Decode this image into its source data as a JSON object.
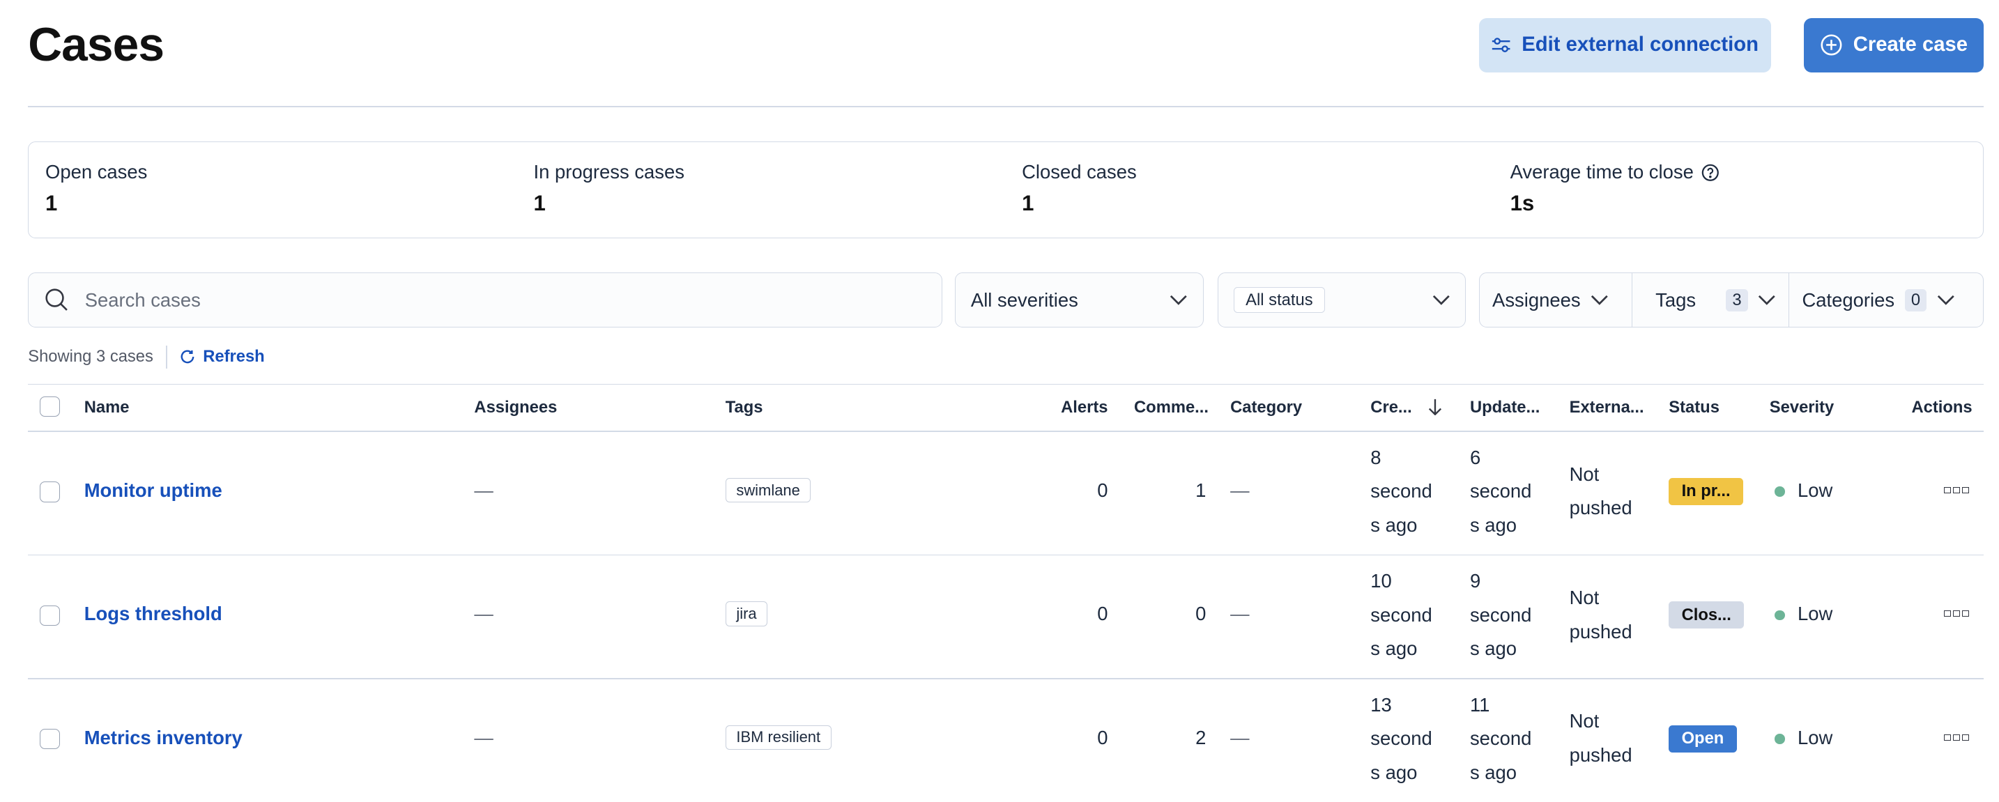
{
  "header": {
    "title": "Cases",
    "edit_connection_label": "Edit external connection",
    "create_case_label": "Create case"
  },
  "stats": [
    {
      "label": "Open cases",
      "value": "1"
    },
    {
      "label": "In progress cases",
      "value": "1"
    },
    {
      "label": "Closed cases",
      "value": "1"
    },
    {
      "label": "Average time to close",
      "value": "1s",
      "icon": "question-circle-icon"
    }
  ],
  "filters": {
    "search_placeholder": "Search cases",
    "severity": "All severities",
    "status": "All status",
    "assignees": "Assignees",
    "tags": "Tags",
    "tags_count": "3",
    "categories": "Categories",
    "categories_count": "0"
  },
  "summary": {
    "showing": "Showing 3 cases",
    "refresh": "Refresh"
  },
  "table": {
    "columns": [
      "Name",
      "Assignees",
      "Tags",
      "Alerts",
      "Comme...",
      "Category",
      "Cre...",
      "Update...",
      "Externa...",
      "Status",
      "Severity",
      "Actions"
    ],
    "rows": [
      {
        "name": "Monitor uptime",
        "assignees": "—",
        "tag": "swimlane",
        "alerts": "0",
        "comments": "1",
        "category": "—",
        "created": [
          "8",
          "second",
          "s ago"
        ],
        "updated": [
          "6",
          "second",
          "s ago"
        ],
        "external": [
          "Not",
          "pushed"
        ],
        "status": "In pr...",
        "status_color": "#f1c444",
        "severity": "Low"
      },
      {
        "name": "Logs threshold",
        "assignees": "—",
        "tag": "jira",
        "alerts": "0",
        "comments": "0",
        "category": "—",
        "created": [
          "10",
          "second",
          "s ago"
        ],
        "updated": [
          "9",
          "second",
          "s ago"
        ],
        "external": [
          "Not",
          "pushed"
        ],
        "status": "Clos...",
        "status_color": "#d3dae6",
        "severity": "Low"
      },
      {
        "name": "Metrics inventory",
        "assignees": "—",
        "tag": "IBM resilient",
        "alerts": "0",
        "comments": "2",
        "category": "—",
        "created": [
          "13",
          "second",
          "s ago"
        ],
        "updated": [
          "11",
          "second",
          "s ago"
        ],
        "external": [
          "Not",
          "pushed"
        ],
        "status": "Open",
        "status_color": "#3a79d0",
        "severity": "Low"
      }
    ]
  },
  "colors": {
    "primary": "#3a79d0",
    "link": "#1750ba",
    "severity_low": "#6db497"
  }
}
